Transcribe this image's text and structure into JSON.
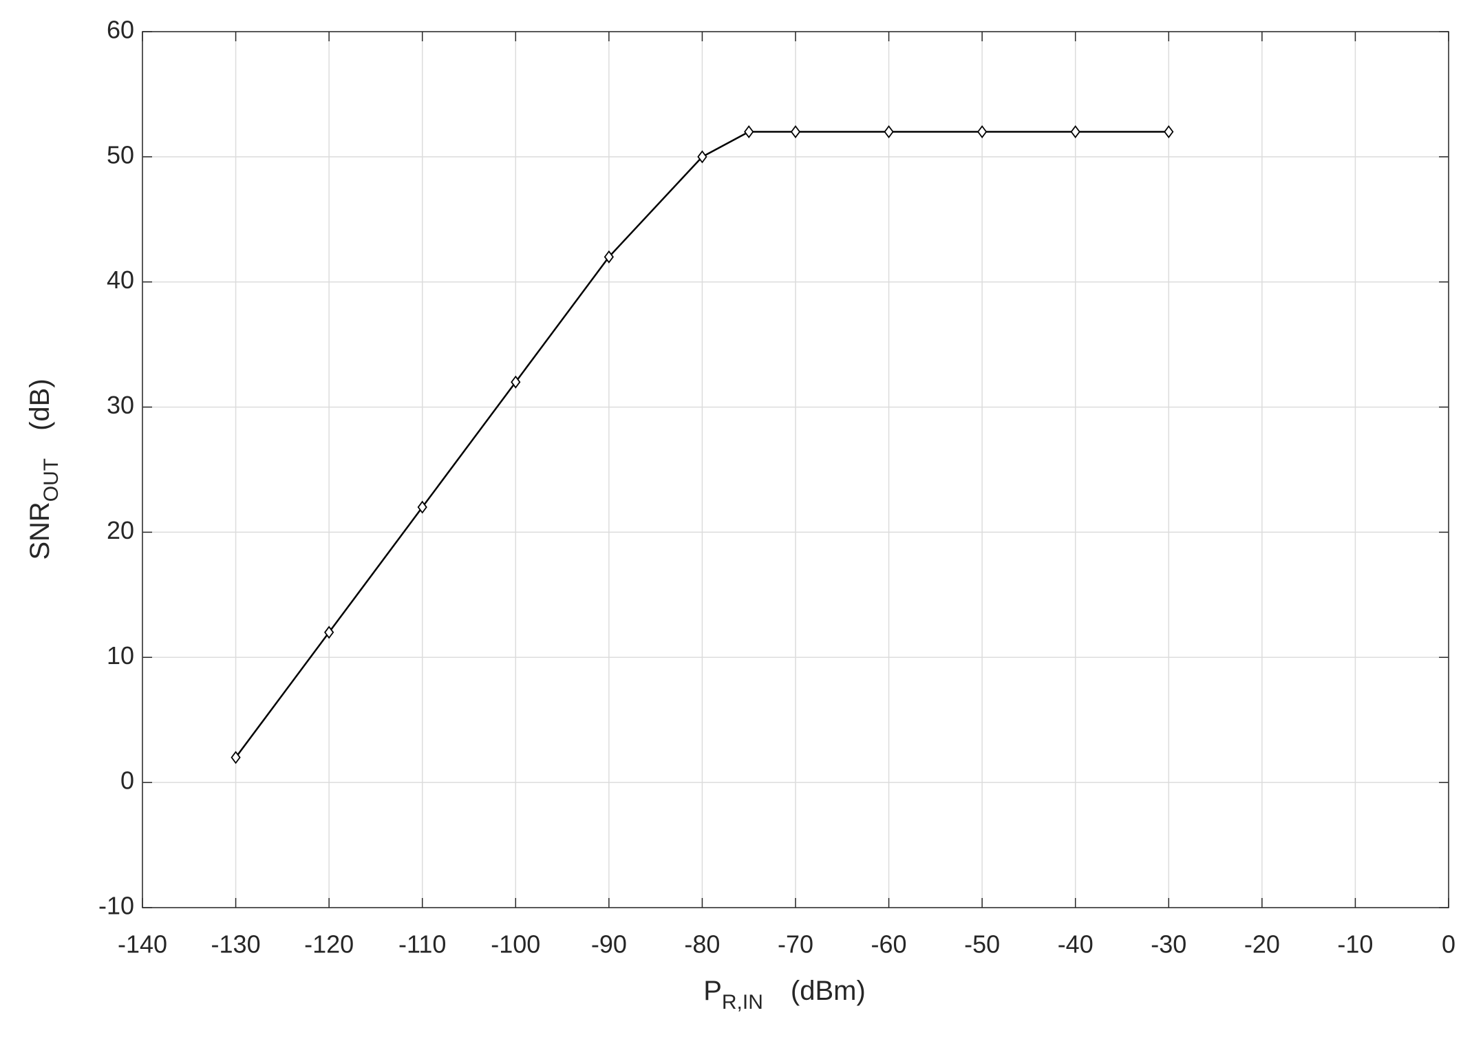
{
  "chart_data": {
    "type": "line",
    "xlabel": {
      "main": "P",
      "sub": "R,IN",
      "unit": "(dBm)"
    },
    "ylabel": {
      "main": "SNR",
      "sub": "OUT",
      "unit": "(dB)"
    },
    "x": [
      -130,
      -120,
      -110,
      -100,
      -90,
      -80,
      -75,
      -70,
      -60,
      -50,
      -40,
      -30
    ],
    "series": [
      {
        "color": "#000000",
        "marker": "diamond",
        "values": [
          2,
          12,
          22,
          32,
          42,
          50,
          52,
          52,
          52,
          52,
          52,
          52
        ]
      }
    ],
    "xlim": [
      -140,
      0
    ],
    "xticks": [
      -140,
      -130,
      -120,
      -110,
      -100,
      -90,
      -80,
      -70,
      -60,
      -50,
      -40,
      -30,
      -20,
      -10,
      0
    ],
    "ylim": [
      -10,
      60
    ],
    "yticks": [
      -10,
      0,
      10,
      20,
      30,
      40,
      50,
      60
    ],
    "grid": true
  }
}
